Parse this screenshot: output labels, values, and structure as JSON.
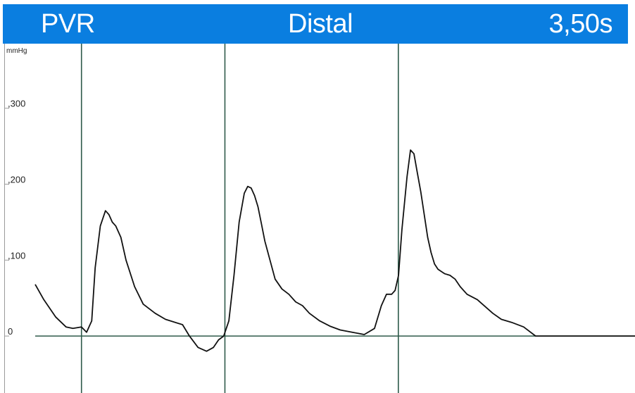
{
  "header": {
    "left": "PVR",
    "center": "Distal",
    "right": "3,50s",
    "background": "#0a7ee0",
    "text_color": "#ffffff"
  },
  "chart_data": {
    "type": "line",
    "title": "Distal",
    "ylabel": "mmHg",
    "ylim": [
      -0.075,
      0.385
    ],
    "xlim": [
      0,
      3.5
    ],
    "yticks": [
      0,
      0.1,
      0.2,
      0.3
    ],
    "ytick_labels": [
      "0",
      ",100",
      ",200",
      ",300"
    ],
    "vertical_markers_s": [
      0.27,
      1.107,
      2.119
    ],
    "grid": false,
    "colors": {
      "trace": "#111111",
      "markers": "#2e5a4a",
      "baseline": "#2e5a4a"
    },
    "series": [
      {
        "x": [
          0.0,
          0.05,
          0.12,
          0.18,
          0.22,
          0.27,
          0.3,
          0.33,
          0.35,
          0.38,
          0.41,
          0.43,
          0.45,
          0.47,
          0.5,
          0.53,
          0.58,
          0.63,
          0.7,
          0.76,
          0.86,
          0.9,
          0.95,
          1.0,
          1.04,
          1.07,
          1.1,
          1.13,
          1.16,
          1.19,
          1.22,
          1.24,
          1.26,
          1.28,
          1.3,
          1.32,
          1.34,
          1.37,
          1.4,
          1.44,
          1.48,
          1.52,
          1.56,
          1.6,
          1.66,
          1.72,
          1.78,
          1.85,
          1.92,
          1.98,
          2.02,
          2.05,
          2.08,
          2.1,
          2.12,
          2.14,
          2.17,
          2.19,
          2.21,
          2.23,
          2.25,
          2.27,
          2.29,
          2.31,
          2.33,
          2.35,
          2.37,
          2.39,
          2.42,
          2.45,
          2.48,
          2.52,
          2.58,
          2.63,
          2.67,
          2.72,
          2.78,
          2.85,
          2.92,
          2.97,
          3.0,
          3.03,
          3.1,
          3.2,
          3.3,
          3.4,
          3.5
        ],
        "y": [
          0.068,
          0.048,
          0.025,
          0.012,
          0.01,
          0.012,
          0.005,
          0.02,
          0.09,
          0.145,
          0.165,
          0.16,
          0.15,
          0.145,
          0.13,
          0.1,
          0.065,
          0.042,
          0.03,
          0.022,
          0.015,
          0.0,
          -0.015,
          -0.02,
          -0.015,
          -0.005,
          0.0,
          0.02,
          0.08,
          0.15,
          0.188,
          0.197,
          0.195,
          0.185,
          0.17,
          0.148,
          0.125,
          0.1,
          0.075,
          0.062,
          0.055,
          0.045,
          0.04,
          0.03,
          0.02,
          0.013,
          0.008,
          0.005,
          0.002,
          0.01,
          0.04,
          0.055,
          0.055,
          0.06,
          0.08,
          0.14,
          0.21,
          0.245,
          0.24,
          0.215,
          0.19,
          0.16,
          0.13,
          0.11,
          0.095,
          0.088,
          0.085,
          0.082,
          0.08,
          0.075,
          0.065,
          0.055,
          0.048,
          0.038,
          0.03,
          0.022,
          0.018,
          0.012,
          0.0,
          0.0,
          0.0,
          0.0,
          0.0,
          0.0,
          0.0,
          0.0,
          0.0
        ]
      }
    ]
  }
}
